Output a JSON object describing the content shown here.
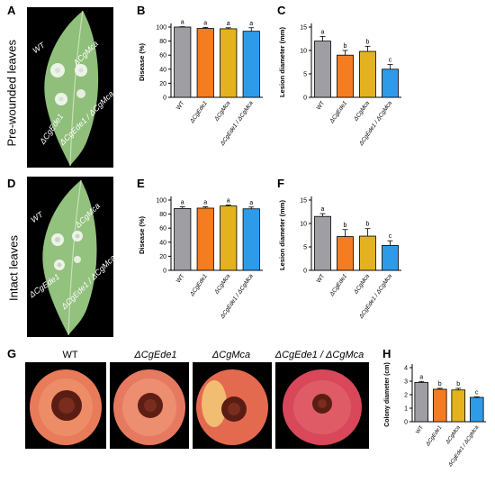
{
  "figure": {
    "panels": {
      "A": "A",
      "B": "B",
      "C": "C",
      "D": "D",
      "E": "E",
      "F": "F",
      "G": "G",
      "H": "H"
    },
    "row_labels": {
      "top": "Pre-wounded leaves",
      "middle": "Intact  leaves"
    },
    "leaf_labels": {
      "wt": "WT",
      "ede1": "ΔCgEde1",
      "mca": "ΔCgMca",
      "double": "ΔCgEde1 / ΔCgMca"
    },
    "apple_labels": [
      "WT",
      "ΔCgEde1",
      "ΔCgMca",
      "ΔCgEde1 / ΔCgMca"
    ]
  },
  "colors": {
    "WT": "#9e9ea3",
    "ede1": "#f47c21",
    "mca": "#e3b21e",
    "double": "#2e9be8"
  },
  "chart_data": [
    {
      "panel": "B",
      "type": "bar",
      "categories": [
        "WT",
        "ΔCgEde1",
        "ΔCgMca",
        "ΔCgEde1 / ΔCgMca"
      ],
      "values": [
        100,
        98,
        97.5,
        94
      ],
      "errors": [
        0.5,
        1.5,
        1.5,
        5
      ],
      "letters": [
        "a",
        "a",
        "a",
        "a"
      ],
      "ylabel": "Disease (%)",
      "ylim": [
        0,
        100
      ],
      "yticks": [
        0,
        20,
        40,
        60,
        80,
        100
      ]
    },
    {
      "panel": "C",
      "type": "bar",
      "categories": [
        "WT",
        "ΔCgEde1",
        "ΔCgMca",
        "ΔCgEde1 / ΔCgMca"
      ],
      "values": [
        12,
        9,
        9.8,
        6
      ],
      "errors": [
        1,
        1,
        1.1,
        1
      ],
      "letters": [
        "a",
        "b",
        "b",
        "c"
      ],
      "ylabel": "Lesion diameter (mm)",
      "ylim": [
        0,
        15
      ],
      "yticks": [
        0,
        5,
        10,
        15
      ]
    },
    {
      "panel": "E",
      "type": "bar",
      "categories": [
        "WT",
        "ΔCgEde1",
        "ΔCgMca",
        "ΔCgEde1 / ΔCgMca"
      ],
      "values": [
        88,
        88.5,
        91.5,
        87.5
      ],
      "errors": [
        2.5,
        2,
        1.5,
        2.5
      ],
      "letters": [
        "a",
        "a",
        "a",
        "a"
      ],
      "ylabel": "Disease (%)",
      "ylim": [
        0,
        100
      ],
      "yticks": [
        0,
        20,
        40,
        60,
        80,
        100
      ]
    },
    {
      "panel": "F",
      "type": "bar",
      "categories": [
        "WT",
        "ΔCgEde1",
        "ΔCgMca",
        "ΔCgEde1 / ΔCgMca"
      ],
      "values": [
        11.5,
        7.2,
        7.3,
        5.3
      ],
      "errors": [
        0.6,
        1.5,
        1.6,
        1
      ],
      "letters": [
        "a",
        "b",
        "b",
        "c"
      ],
      "ylabel": "Lesion diameter (mm)",
      "ylim": [
        0,
        15
      ],
      "yticks": [
        0,
        5,
        10,
        15
      ]
    },
    {
      "panel": "H",
      "type": "bar",
      "categories": [
        "WT",
        "ΔCgEde1",
        "ΔCgMca",
        "ΔCgEde1 / ΔCgMca"
      ],
      "values": [
        2.9,
        2.4,
        2.35,
        1.8
      ],
      "errors": [
        0.08,
        0.07,
        0.12,
        0.04
      ],
      "letters": [
        "a",
        "b",
        "b",
        "c"
      ],
      "ylabel": "Colony diameter (cm)",
      "ylim": [
        0,
        4
      ],
      "yticks": [
        0,
        1,
        2,
        3,
        4
      ]
    }
  ]
}
